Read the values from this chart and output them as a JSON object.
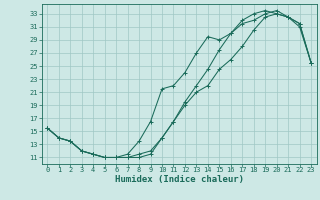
{
  "title": "",
  "xlabel": "Humidex (Indice chaleur)",
  "bg_color": "#cde8e5",
  "grid_color": "#a0c8c4",
  "line_color": "#1a6b5a",
  "spine_color": "#1a6b5a",
  "xlim": [
    -0.5,
    23.5
  ],
  "ylim": [
    10.0,
    34.5
  ],
  "xticks": [
    0,
    1,
    2,
    3,
    4,
    5,
    6,
    7,
    8,
    9,
    10,
    11,
    12,
    13,
    14,
    15,
    16,
    17,
    18,
    19,
    20,
    21,
    22,
    23
  ],
  "yticks": [
    11,
    13,
    15,
    17,
    19,
    21,
    23,
    25,
    27,
    29,
    31,
    33
  ],
  "line1_x": [
    0,
    1,
    2,
    3,
    4,
    5,
    6,
    7,
    8,
    9,
    10,
    11,
    12,
    13,
    14,
    15,
    16,
    17,
    18,
    19,
    20,
    21,
    22,
    23
  ],
  "line1_y": [
    15.5,
    14.0,
    13.5,
    12.0,
    11.5,
    11.0,
    11.0,
    11.0,
    11.0,
    11.5,
    14.0,
    16.5,
    19.0,
    21.0,
    22.0,
    24.5,
    26.0,
    28.0,
    30.5,
    32.5,
    33.0,
    32.5,
    31.5,
    25.5
  ],
  "line2_x": [
    0,
    1,
    2,
    3,
    4,
    5,
    6,
    7,
    8,
    9,
    10,
    11,
    12,
    13,
    14,
    15,
    16,
    17,
    18,
    19,
    20,
    21,
    22,
    23
  ],
  "line2_y": [
    15.5,
    14.0,
    13.5,
    12.0,
    11.5,
    11.0,
    11.0,
    11.5,
    13.5,
    16.5,
    21.5,
    22.0,
    24.0,
    27.0,
    29.5,
    29.0,
    30.0,
    32.0,
    33.0,
    33.5,
    33.0,
    32.5,
    31.5,
    25.5
  ],
  "line3_x": [
    0,
    1,
    2,
    3,
    4,
    5,
    6,
    7,
    8,
    9,
    10,
    11,
    12,
    13,
    14,
    15,
    16,
    17,
    18,
    19,
    20,
    21,
    22,
    23
  ],
  "line3_y": [
    15.5,
    14.0,
    13.5,
    12.0,
    11.5,
    11.0,
    11.0,
    11.0,
    11.5,
    12.0,
    14.0,
    16.5,
    19.5,
    22.0,
    24.5,
    27.5,
    30.0,
    31.5,
    32.0,
    33.0,
    33.5,
    32.5,
    31.0,
    25.5
  ],
  "tick_fontsize": 5.0,
  "xlabel_fontsize": 6.5,
  "marker_size": 2.8,
  "line_width": 0.75
}
